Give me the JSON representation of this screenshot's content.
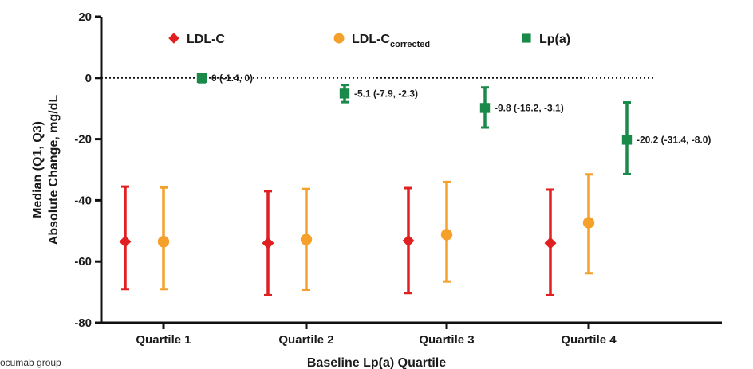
{
  "caption": "ocumab group",
  "chart_data": {
    "type": "scatter",
    "xlabel": "Baseline Lp(a) Quartile",
    "ylabel_lines": [
      "Median (Q1, Q3)",
      "Absolute Change, mg/dL"
    ],
    "ylim": [
      -80,
      20
    ],
    "yticks": [
      20,
      0,
      -20,
      -40,
      -60,
      -80
    ],
    "categories": [
      "Quartile 1",
      "Quartile 2",
      "Quartile 3",
      "Quartile 4"
    ],
    "reference_line": 0,
    "legend": {
      "placement": "top",
      "entries": [
        {
          "text": "LDL-C",
          "sub": ""
        },
        {
          "text": "LDL-C",
          "sub": "corrected"
        },
        {
          "text": "Lp(a)",
          "sub": ""
        }
      ]
    },
    "series": [
      {
        "name": "LDL-C",
        "marker": "diamond",
        "color": "#e02020",
        "median": [
          -53.5,
          -54,
          -53.2,
          -54
        ],
        "q1": [
          -69,
          -71,
          -70.3,
          -71
        ],
        "q3": [
          -35.5,
          -37,
          -36,
          -36.5
        ],
        "labels": [
          "",
          "",
          "",
          ""
        ]
      },
      {
        "name": "LDL-C corrected",
        "marker": "circle",
        "color": "#f5a02a",
        "median": [
          -53.5,
          -52.8,
          -51.2,
          -47.3
        ],
        "q1": [
          -69,
          -69.2,
          -66.5,
          -63.8
        ],
        "q3": [
          -35.8,
          -36.3,
          -34,
          -31.5
        ],
        "labels": [
          "",
          "",
          "",
          ""
        ]
      },
      {
        "name": "Lp(a)",
        "marker": "square",
        "color": "#1a8a4a",
        "median": [
          0,
          -5.1,
          -9.8,
          -20.2
        ],
        "q1": [
          -1.4,
          -7.9,
          -16.2,
          -31.4
        ],
        "q3": [
          0,
          -2.3,
          -3.1,
          -8.0
        ],
        "labels": [
          "0 (-1.4, 0)",
          "-5.1 (-7.9, -2.3)",
          "-9.8 (-16.2, -3.1)",
          "-20.2 (-31.4, -8.0)"
        ]
      }
    ]
  }
}
